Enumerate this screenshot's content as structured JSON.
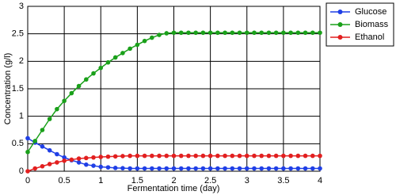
{
  "chart_data": {
    "type": "line",
    "x_label": "Fermentation time (day)",
    "y_label": "Concentration (g/l)",
    "x": [
      0,
      0.1,
      0.2,
      0.3,
      0.4,
      0.5,
      0.6,
      0.7,
      0.8,
      0.9,
      1,
      1.1,
      1.2,
      1.3,
      1.4,
      1.5,
      1.6,
      1.7,
      1.8,
      1.9,
      2,
      2.1,
      2.2,
      2.3,
      2.4,
      2.5,
      2.6,
      2.7,
      2.8,
      2.9,
      3,
      3.1,
      3.2,
      3.3,
      3.4,
      3.5,
      3.6,
      3.7,
      3.8,
      3.9,
      4
    ],
    "series": [
      {
        "name": "Glucose",
        "color": "#1f3fe6",
        "values": [
          0.6,
          0.52,
          0.45,
          0.38,
          0.31,
          0.25,
          0.2,
          0.16,
          0.12,
          0.1,
          0.08,
          0.07,
          0.06,
          0.055,
          0.05,
          0.05,
          0.05,
          0.05,
          0.05,
          0.05,
          0.05,
          0.05,
          0.05,
          0.05,
          0.05,
          0.05,
          0.05,
          0.05,
          0.05,
          0.05,
          0.05,
          0.05,
          0.05,
          0.05,
          0.05,
          0.05,
          0.05,
          0.05,
          0.05,
          0.05,
          0.05
        ]
      },
      {
        "name": "Biomass",
        "color": "#1aa01a",
        "values": [
          0.35,
          0.55,
          0.75,
          0.95,
          1.13,
          1.28,
          1.42,
          1.55,
          1.67,
          1.78,
          1.88,
          1.98,
          2.07,
          2.15,
          2.23,
          2.3,
          2.37,
          2.43,
          2.48,
          2.51,
          2.52,
          2.52,
          2.52,
          2.52,
          2.52,
          2.52,
          2.52,
          2.52,
          2.52,
          2.52,
          2.52,
          2.52,
          2.52,
          2.52,
          2.52,
          2.52,
          2.52,
          2.52,
          2.52,
          2.52,
          2.52
        ]
      },
      {
        "name": "Ethanol",
        "color": "#e21f1f",
        "values": [
          0,
          0.05,
          0.09,
          0.13,
          0.16,
          0.19,
          0.21,
          0.23,
          0.24,
          0.25,
          0.26,
          0.265,
          0.27,
          0.275,
          0.28,
          0.28,
          0.28,
          0.28,
          0.28,
          0.28,
          0.28,
          0.28,
          0.28,
          0.28,
          0.28,
          0.28,
          0.28,
          0.28,
          0.28,
          0.28,
          0.28,
          0.28,
          0.28,
          0.28,
          0.28,
          0.28,
          0.28,
          0.28,
          0.28,
          0.28,
          0.28
        ]
      }
    ],
    "xlim": [
      0,
      4
    ],
    "xticks": [
      0,
      0.5,
      1,
      1.5,
      2,
      2.5,
      3,
      3.5,
      4
    ],
    "ylim": [
      0,
      3
    ],
    "yticks": [
      0,
      0.5,
      1,
      1.5,
      2,
      2.5,
      3
    ],
    "grid": true,
    "legend": "right"
  }
}
